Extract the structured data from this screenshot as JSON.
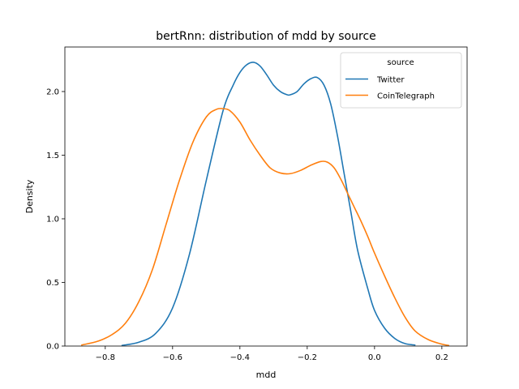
{
  "chart_data": {
    "type": "line",
    "title": "bertRnn: distribution of mdd by source",
    "xlabel": "mdd",
    "ylabel": "Density",
    "xlim": [
      -0.92,
      0.275
    ],
    "ylim": [
      0,
      2.35
    ],
    "xticks": [
      -0.8,
      -0.6,
      -0.4,
      -0.2,
      0.0,
      0.2
    ],
    "xtick_labels": [
      "−0.8",
      "−0.6",
      "−0.4",
      "−0.2",
      "0.0",
      "0.2"
    ],
    "yticks": [
      0.0,
      0.5,
      1.0,
      1.5,
      2.0
    ],
    "ytick_labels": [
      "0.0",
      "0.5",
      "1.0",
      "1.5",
      "2.0"
    ],
    "grid": false,
    "legend": {
      "title": "source",
      "placement": "top-right"
    },
    "series": [
      {
        "name": "Twitter",
        "color": "#1f77b4",
        "x": [
          -0.75,
          -0.7,
          -0.65,
          -0.6,
          -0.55,
          -0.5,
          -0.45,
          -0.42,
          -0.4,
          -0.38,
          -0.36,
          -0.34,
          -0.32,
          -0.3,
          -0.28,
          -0.26,
          -0.25,
          -0.23,
          -0.21,
          -0.19,
          -0.17,
          -0.15,
          -0.13,
          -0.11,
          -0.09,
          -0.07,
          -0.05,
          -0.02,
          0.0,
          0.03,
          0.06,
          0.09,
          0.12
        ],
        "y": [
          0.005,
          0.03,
          0.1,
          0.3,
          0.72,
          1.3,
          1.85,
          2.05,
          2.15,
          2.21,
          2.23,
          2.2,
          2.13,
          2.05,
          2.0,
          1.975,
          1.975,
          2.0,
          2.06,
          2.1,
          2.11,
          2.05,
          1.9,
          1.65,
          1.35,
          1.05,
          0.75,
          0.45,
          0.28,
          0.14,
          0.06,
          0.02,
          0.008
        ]
      },
      {
        "name": "CoinTelegraph",
        "color": "#ff7f0e",
        "x": [
          -0.87,
          -0.82,
          -0.78,
          -0.74,
          -0.7,
          -0.66,
          -0.62,
          -0.58,
          -0.54,
          -0.5,
          -0.47,
          -0.45,
          -0.43,
          -0.4,
          -0.37,
          -0.34,
          -0.31,
          -0.28,
          -0.25,
          -0.22,
          -0.19,
          -0.16,
          -0.14,
          -0.12,
          -0.1,
          -0.08,
          -0.06,
          -0.04,
          -0.02,
          0.0,
          0.03,
          0.06,
          0.09,
          0.12,
          0.16,
          0.2,
          0.22
        ],
        "y": [
          0.008,
          0.04,
          0.09,
          0.18,
          0.35,
          0.6,
          0.95,
          1.3,
          1.6,
          1.8,
          1.86,
          1.865,
          1.85,
          1.76,
          1.62,
          1.5,
          1.4,
          1.36,
          1.355,
          1.38,
          1.42,
          1.45,
          1.445,
          1.4,
          1.31,
          1.2,
          1.09,
          0.98,
          0.86,
          0.73,
          0.55,
          0.38,
          0.23,
          0.12,
          0.05,
          0.015,
          0.005
        ]
      }
    ]
  }
}
